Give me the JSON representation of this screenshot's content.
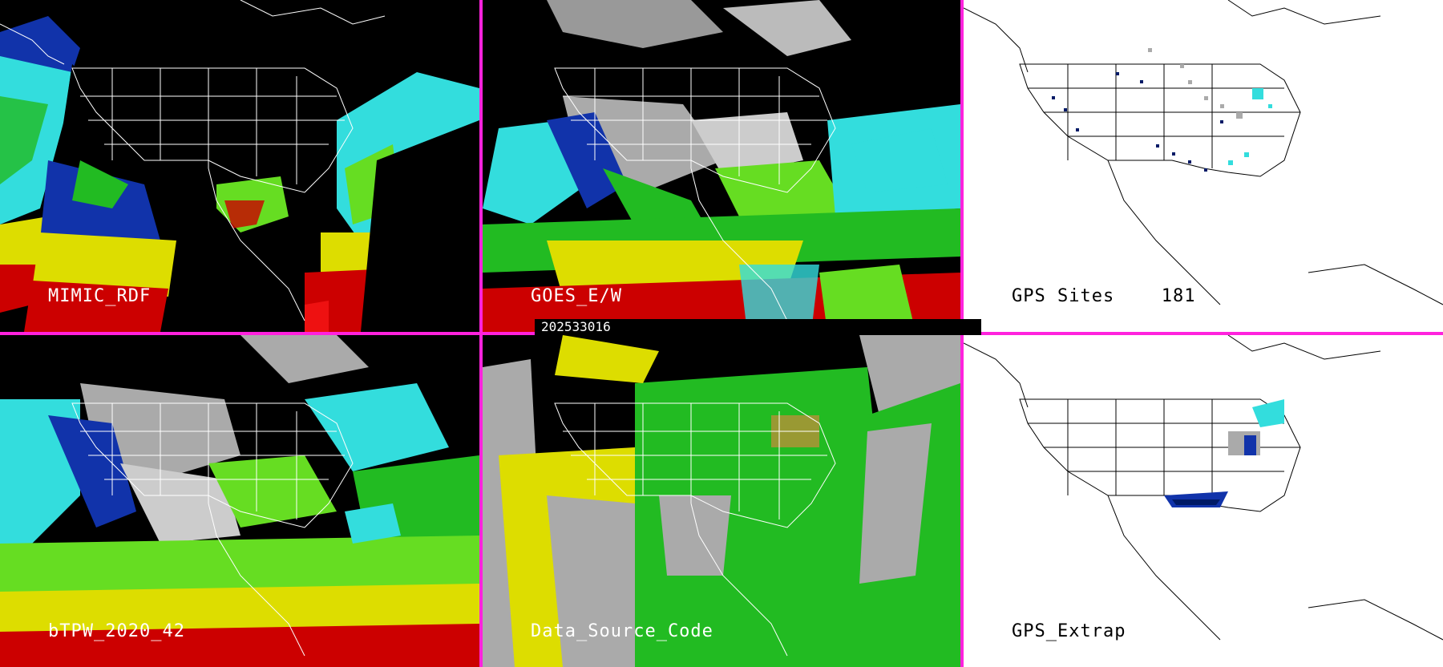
{
  "panels": [
    {
      "id": "mimic",
      "label": "MIMIC_RDF"
    },
    {
      "id": "goes",
      "label": "GOES_E/W"
    },
    {
      "id": "gps_sites",
      "label": "GPS Sites",
      "count": "181"
    },
    {
      "id": "btpw",
      "label": "bTPW_2020_42"
    },
    {
      "id": "dsc",
      "label": "Data_Source_Code"
    },
    {
      "id": "gps_extrap",
      "label": "GPS_Extrap"
    }
  ],
  "datestamp": "202533016",
  "colors": {
    "divider": "#ff22dd",
    "cyan": "#33dddd",
    "blue": "#1133aa",
    "navy": "#001a66",
    "green": "#22bb22",
    "lime": "#66dd22",
    "yellow": "#dddd00",
    "red": "#cc0000",
    "gray": "#aaaaaa",
    "white": "#ffffff"
  }
}
